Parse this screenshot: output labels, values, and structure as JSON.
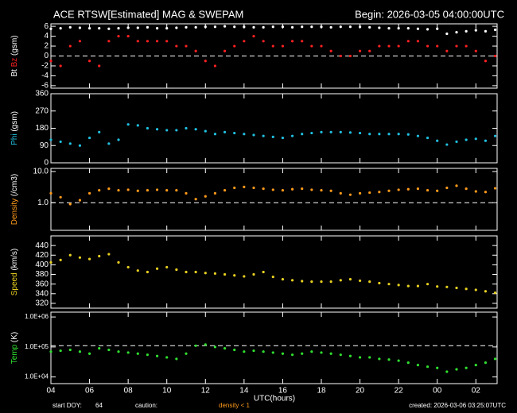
{
  "header": {
    "title": "ACE RTSW[Estimated] MAG & SWEPAM",
    "begin": "Begin: 2026-03-05 04:00:00UTC"
  },
  "footer": {
    "xlabel": "UTC(hours)",
    "doy_label": "start DOY:",
    "doy": "64",
    "caution_label": "caution:",
    "caution": "density < 1",
    "created": "created: 2026-03-06 03:25:07UTC"
  },
  "chart_data": [
    {
      "type": "scatter",
      "ylabel_unit": "(gsm)",
      "xlim": [
        0,
        23.1
      ],
      "xticks": [
        0,
        2,
        4,
        6,
        8,
        10,
        12,
        14,
        16,
        18,
        20,
        22
      ],
      "ylim": [
        -6.5,
        6.5
      ],
      "yticks": [
        -6,
        -4,
        -2,
        0,
        2,
        4,
        6
      ],
      "reference_line": 0,
      "x": [
        0,
        0.5,
        1,
        1.5,
        2,
        2.5,
        3,
        3.5,
        4,
        4.5,
        5,
        5.5,
        6,
        6.5,
        7,
        7.5,
        8,
        8.5,
        9,
        9.5,
        10,
        10.5,
        11,
        11.5,
        12,
        12.5,
        13,
        13.5,
        14,
        14.5,
        15,
        15.5,
        16,
        16.5,
        17,
        17.5,
        18,
        18.5,
        19,
        19.5,
        20,
        20.5,
        21,
        21.5,
        22,
        22.5,
        23
      ],
      "series": [
        {
          "name": "Bt",
          "color": "#ffffff",
          "values": [
            5.5,
            5.6,
            5.8,
            5.7,
            5.6,
            5.6,
            5.5,
            5.6,
            5.7,
            5.7,
            5.8,
            5.6,
            5.6,
            5.7,
            5.8,
            5.8,
            5.9,
            5.9,
            6.0,
            5.9,
            5.9,
            5.8,
            5.8,
            5.9,
            5.9,
            5.8,
            5.9,
            5.9,
            5.9,
            5.8,
            5.9,
            5.9,
            5.9,
            5.8,
            5.7,
            5.6,
            5.6,
            5.6,
            5.5,
            5.4,
            5.5,
            4.5,
            4.8,
            5.0,
            5.2,
            5.0,
            5.3
          ]
        },
        {
          "name": "Bz",
          "color": "#ff2020",
          "values": [
            -1,
            -2,
            2,
            3,
            -1,
            -2,
            3,
            4,
            4,
            3,
            3,
            3,
            3,
            2,
            2,
            1,
            -1,
            -2,
            1,
            2,
            3,
            4,
            3,
            2,
            2,
            3,
            3,
            2,
            2,
            1,
            0,
            0,
            1,
            1,
            2,
            2,
            2,
            3,
            3,
            2,
            2,
            1,
            2,
            2,
            1,
            -1,
            0
          ]
        }
      ]
    },
    {
      "type": "scatter",
      "ylabel_unit": "(gsm)",
      "xlim": [
        0,
        23.1
      ],
      "xticks": [
        0,
        2,
        4,
        6,
        8,
        10,
        12,
        14,
        16,
        18,
        20,
        22
      ],
      "ylim": [
        0,
        360
      ],
      "yticks": [
        0,
        90,
        180,
        270,
        360
      ],
      "x": [
        0,
        0.5,
        1,
        1.5,
        2,
        2.5,
        3,
        3.5,
        4,
        4.5,
        5,
        5.5,
        6,
        6.5,
        7,
        7.5,
        8,
        8.5,
        9,
        9.5,
        10,
        10.5,
        11,
        11.5,
        12,
        12.5,
        13,
        13.5,
        14,
        14.5,
        15,
        15.5,
        16,
        16.5,
        17,
        17.5,
        18,
        18.5,
        19,
        19.5,
        20,
        20.5,
        21,
        21.5,
        22,
        22.5,
        23
      ],
      "series": [
        {
          "name": "Phi",
          "color": "#20c0e0",
          "values": [
            120,
            110,
            100,
            90,
            130,
            160,
            100,
            120,
            200,
            195,
            180,
            175,
            170,
            170,
            180,
            175,
            165,
            150,
            160,
            155,
            150,
            145,
            140,
            135,
            130,
            140,
            150,
            155,
            160,
            160,
            160,
            158,
            155,
            150,
            150,
            150,
            150,
            148,
            140,
            130,
            115,
            95,
            110,
            120,
            125,
            115,
            140
          ]
        }
      ]
    },
    {
      "type": "scatter",
      "ylabel_unit": "(/cm3)",
      "log": true,
      "xlim": [
        0,
        23.1
      ],
      "xticks": [
        0,
        2,
        4,
        6,
        8,
        10,
        12,
        14,
        16,
        18,
        20,
        22
      ],
      "ylim": [
        0.13,
        12.6
      ],
      "yticks": [
        {
          "value": 1,
          "label": "1.0"
        },
        {
          "value": 10,
          "label": "10.0"
        }
      ],
      "reference_line": 1,
      "x": [
        0,
        0.5,
        1,
        1.5,
        2,
        2.5,
        3,
        3.5,
        4,
        4.5,
        5,
        5.5,
        6,
        6.5,
        7,
        7.5,
        8,
        8.5,
        9,
        9.5,
        10,
        10.5,
        11,
        11.5,
        12,
        12.5,
        13,
        13.5,
        14,
        14.5,
        15,
        15.5,
        16,
        16.5,
        17,
        17.5,
        18,
        18.5,
        19,
        19.5,
        20,
        20.5,
        21,
        21.5,
        22,
        22.5,
        23
      ],
      "series": [
        {
          "name": "Density",
          "color": "#ff9a1a",
          "values": [
            2.0,
            1.5,
            0.9,
            1.2,
            2.0,
            2.5,
            2.8,
            2.5,
            2.6,
            2.4,
            2.5,
            2.6,
            2.5,
            2.5,
            2.0,
            1.3,
            1.6,
            2.0,
            2.5,
            3.0,
            3.2,
            3.0,
            2.8,
            2.6,
            2.5,
            2.7,
            2.8,
            2.6,
            2.5,
            2.4,
            2.0,
            1.8,
            2.0,
            2.1,
            2.2,
            2.4,
            2.6,
            2.7,
            2.8,
            2.5,
            2.4,
            3.0,
            3.5,
            2.8,
            2.3,
            2.2,
            2.9
          ]
        }
      ]
    },
    {
      "type": "scatter",
      "ylabel_unit": "(km/s)",
      "xlim": [
        0,
        23.1
      ],
      "xticks": [
        0,
        2,
        4,
        6,
        8,
        10,
        12,
        14,
        16,
        18,
        20,
        22
      ],
      "ylim": [
        310,
        460
      ],
      "yticks": [
        320,
        340,
        360,
        380,
        400,
        420,
        440
      ],
      "x": [
        0,
        0.5,
        1,
        1.5,
        2,
        2.5,
        3,
        3.5,
        4,
        4.5,
        5,
        5.5,
        6,
        6.5,
        7,
        7.5,
        8,
        8.5,
        9,
        9.5,
        10,
        10.5,
        11,
        11.5,
        12,
        12.5,
        13,
        13.5,
        14,
        14.5,
        15,
        15.5,
        16,
        16.5,
        17,
        17.5,
        18,
        18.5,
        19,
        19.5,
        20,
        20.5,
        21,
        21.5,
        22,
        22.5,
        23
      ],
      "series": [
        {
          "name": "Speed",
          "color": "#e8d020",
          "values": [
            405,
            410,
            420,
            415,
            412,
            418,
            422,
            405,
            395,
            388,
            385,
            392,
            395,
            390,
            385,
            385,
            383,
            382,
            380,
            378,
            376,
            380,
            385,
            375,
            370,
            368,
            366,
            365,
            365,
            365,
            368,
            370,
            367,
            365,
            362,
            360,
            358,
            356,
            356,
            360,
            355,
            354,
            352,
            350,
            348,
            345,
            342
          ]
        }
      ]
    },
    {
      "type": "scatter",
      "ylabel_unit": "(K)",
      "log": true,
      "xlim": [
        0,
        23.1
      ],
      "xticks": [
        {
          "value": 0,
          "label": "04"
        },
        {
          "value": 2,
          "label": "06"
        },
        {
          "value": 4,
          "label": "08"
        },
        {
          "value": 6,
          "label": "10"
        },
        {
          "value": 8,
          "label": "12"
        },
        {
          "value": 10,
          "label": "14"
        },
        {
          "value": 12,
          "label": "16"
        },
        {
          "value": 14,
          "label": "18"
        },
        {
          "value": 16,
          "label": "20"
        },
        {
          "value": 18,
          "label": "22"
        },
        {
          "value": 20,
          "label": "00"
        },
        {
          "value": 22,
          "label": "02"
        }
      ],
      "ylim": [
        6000,
        1450000
      ],
      "yticks": [
        {
          "value": 10000,
          "label": "1.0E+04"
        },
        {
          "value": 100000,
          "label": "1.0E+05"
        },
        {
          "value": 1000000,
          "label": "1.0E+06"
        }
      ],
      "reference_line": 110000,
      "x": [
        0,
        0.5,
        1,
        1.5,
        2,
        2.5,
        3,
        3.5,
        4,
        4.5,
        5,
        5.5,
        6,
        6.5,
        7,
        7.5,
        8,
        8.5,
        9,
        9.5,
        10,
        10.5,
        11,
        11.5,
        12,
        12.5,
        13,
        13.5,
        14,
        14.5,
        15,
        15.5,
        16,
        16.5,
        17,
        17.5,
        18,
        18.5,
        19,
        19.5,
        20,
        20.5,
        21,
        21.5,
        22,
        22.5,
        23
      ],
      "series": [
        {
          "name": "Temp",
          "color": "#30e030",
          "values": [
            70000,
            75000,
            80000,
            70000,
            60000,
            90000,
            80000,
            70000,
            65000,
            60000,
            55000,
            50000,
            45000,
            40000,
            60000,
            110000,
            120000,
            100000,
            90000,
            80000,
            70000,
            75000,
            70000,
            65000,
            60000,
            55000,
            60000,
            70000,
            65000,
            60000,
            55000,
            50000,
            45000,
            45000,
            40000,
            38000,
            35000,
            30000,
            25000,
            22000,
            20000,
            15000,
            18000,
            20000,
            25000,
            30000,
            40000
          ]
        }
      ]
    }
  ]
}
